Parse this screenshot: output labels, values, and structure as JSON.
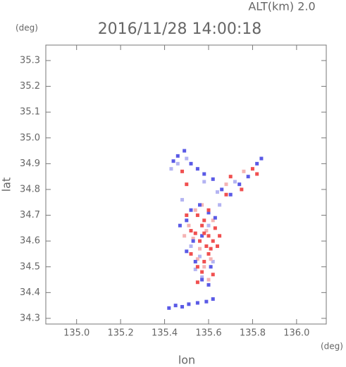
{
  "chart_data": {
    "type": "scatter",
    "title": "2016/11/28 14:00:18",
    "annotation": "ALT(km) 2.0",
    "y_unit": "(deg)",
    "x_unit": "(deg)",
    "xlabel": "lon",
    "ylabel": "lat",
    "xlim": [
      134.86,
      136.135
    ],
    "ylim": [
      34.278,
      35.36
    ],
    "xticks": [
      {
        "value": 135.0,
        "label": "135.0"
      },
      135.2,
      135.4,
      135.6,
      135.8,
      {
        "value": 136.0,
        "label": "136.0"
      }
    ],
    "yticks": [
      34.3,
      34.4,
      34.5,
      34.6,
      34.7,
      34.8,
      34.9,
      {
        "value": 35.0,
        "label": "35.0"
      },
      35.1,
      35.2,
      35.3
    ],
    "series": [
      {
        "color": "#b4b4f2",
        "x": [
          135.43,
          135.46,
          135.5,
          135.58,
          135.64,
          135.72,
          135.52,
          135.56,
          135.6,
          135.54,
          135.57,
          135.65,
          135.48,
          135.62
        ],
        "y": [
          34.88,
          34.9,
          34.92,
          34.83,
          34.79,
          34.83,
          34.58,
          34.54,
          34.66,
          34.49,
          34.46,
          34.74,
          34.76,
          34.52
        ]
      },
      {
        "color": "#f4b4b4",
        "x": [
          135.51,
          135.53,
          135.56,
          135.59,
          135.62,
          135.55,
          135.58,
          135.61,
          135.68,
          135.76,
          135.54,
          135.6,
          135.49,
          135.57
        ],
        "y": [
          34.66,
          34.61,
          34.57,
          34.64,
          34.68,
          34.53,
          34.5,
          34.53,
          34.82,
          34.87,
          34.72,
          34.45,
          34.62,
          34.74
        ]
      },
      {
        "color": "#5a5ae6",
        "x": [
          135.44,
          135.46,
          135.49,
          135.52,
          135.55,
          135.58,
          135.62,
          135.66,
          135.7,
          135.74,
          135.78,
          135.82,
          135.84,
          135.5,
          135.47,
          135.52,
          135.56,
          135.6,
          135.63,
          135.5,
          135.54,
          135.57,
          135.61,
          135.42,
          135.45,
          135.48,
          135.51,
          135.55,
          135.59,
          135.62,
          135.53,
          135.57,
          135.6
        ],
        "y": [
          34.91,
          34.93,
          34.95,
          34.9,
          34.88,
          34.86,
          34.84,
          34.8,
          34.78,
          34.82,
          34.85,
          34.9,
          34.92,
          34.68,
          34.66,
          34.72,
          34.74,
          34.71,
          34.69,
          34.56,
          34.52,
          34.45,
          34.5,
          34.34,
          34.35,
          34.345,
          34.355,
          34.36,
          34.365,
          34.375,
          34.6,
          34.62,
          34.43
        ]
      },
      {
        "color": "#f05050",
        "x": [
          135.48,
          135.5,
          135.55,
          135.57,
          135.58,
          135.6,
          135.62,
          135.59,
          135.61,
          135.56,
          135.54,
          135.52,
          135.63,
          135.6,
          135.58,
          135.55,
          135.57,
          135.62,
          135.65,
          135.52,
          135.58,
          135.6,
          135.7,
          135.75,
          135.8,
          135.82,
          135.68,
          135.55,
          135.5,
          135.64
        ],
        "y": [
          34.87,
          34.82,
          34.7,
          34.66,
          34.63,
          34.62,
          34.6,
          34.58,
          34.57,
          34.6,
          34.63,
          34.64,
          34.65,
          34.55,
          34.52,
          34.5,
          34.48,
          34.47,
          34.62,
          34.55,
          34.68,
          34.72,
          34.85,
          34.8,
          34.88,
          34.86,
          34.78,
          34.44,
          34.7,
          34.58
        ]
      }
    ]
  }
}
